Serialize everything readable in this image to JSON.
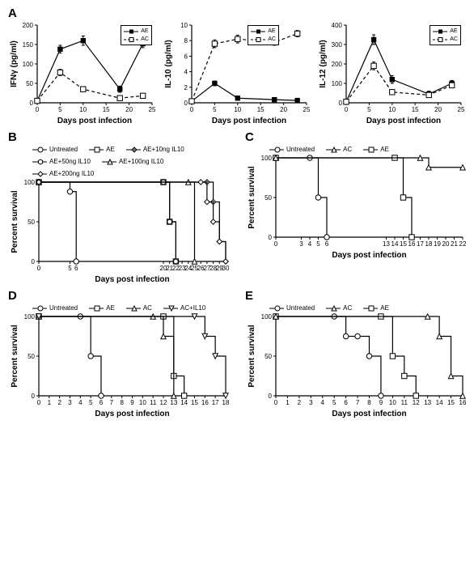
{
  "panelA": {
    "label": "A",
    "charts": [
      {
        "ylabel": "IFNγ (pg/ml)",
        "xlabel": "Days post infection",
        "xlim": [
          0,
          25
        ],
        "xticks": [
          0,
          5,
          10,
          15,
          20,
          25
        ],
        "ylim": [
          0,
          200
        ],
        "yticks": [
          0,
          50,
          100,
          150,
          200
        ],
        "legend": [
          {
            "label": "AE",
            "marker": "square-filled",
            "dash": false
          },
          {
            "label": "AC",
            "marker": "square-open",
            "dash": true
          }
        ],
        "series": {
          "AE": {
            "color": "#000",
            "dash": false,
            "marker": "square-filled",
            "pts": [
              {
                "x": 0,
                "y": 5,
                "e": 3
              },
              {
                "x": 5,
                "y": 138,
                "e": 10
              },
              {
                "x": 10,
                "y": 160,
                "e": 12
              },
              {
                "x": 18,
                "y": 35,
                "e": 8
              },
              {
                "x": 23,
                "y": 152,
                "e": 10
              }
            ]
          },
          "AC": {
            "color": "#000",
            "dash": true,
            "marker": "square-open",
            "pts": [
              {
                "x": 0,
                "y": 5,
                "e": 3
              },
              {
                "x": 5,
                "y": 78,
                "e": 8
              },
              {
                "x": 10,
                "y": 35,
                "e": 6
              },
              {
                "x": 18,
                "y": 12,
                "e": 4
              },
              {
                "x": 23,
                "y": 18,
                "e": 6
              }
            ]
          }
        }
      },
      {
        "ylabel": "IL-10 (pg/ml)",
        "xlabel": "Days post infection",
        "xlim": [
          0,
          25
        ],
        "xticks": [
          0,
          5,
          10,
          15,
          20,
          25
        ],
        "ylim": [
          0,
          10
        ],
        "yticks": [
          0,
          2,
          4,
          6,
          8,
          10
        ],
        "legend": [
          {
            "label": "AE",
            "marker": "square-filled",
            "dash": false
          },
          {
            "label": "AC",
            "marker": "square-open",
            "dash": true
          }
        ],
        "series": {
          "AE": {
            "color": "#000",
            "dash": false,
            "marker": "square-filled",
            "pts": [
              {
                "x": 0,
                "y": 0.2,
                "e": 0.2
              },
              {
                "x": 5,
                "y": 2.5,
                "e": 0.3
              },
              {
                "x": 10,
                "y": 0.6,
                "e": 0.2
              },
              {
                "x": 18,
                "y": 0.4,
                "e": 0.2
              },
              {
                "x": 23,
                "y": 0.3,
                "e": 0.2
              }
            ]
          },
          "AC": {
            "color": "#000",
            "dash": true,
            "marker": "square-open",
            "pts": [
              {
                "x": 0,
                "y": 0.2,
                "e": 0.2
              },
              {
                "x": 5,
                "y": 7.6,
                "e": 0.5
              },
              {
                "x": 10,
                "y": 8.2,
                "e": 0.5
              },
              {
                "x": 18,
                "y": 7.8,
                "e": 0.4
              },
              {
                "x": 23,
                "y": 8.9,
                "e": 0.4
              }
            ]
          }
        }
      },
      {
        "ylabel": "IL-12 (pg/ml)",
        "xlabel": "Days post infection",
        "xlim": [
          0,
          25
        ],
        "xticks": [
          0,
          5,
          10,
          15,
          20,
          25
        ],
        "ylim": [
          0,
          400
        ],
        "yticks": [
          0,
          100,
          200,
          300,
          400
        ],
        "legend": [
          {
            "label": "AE",
            "marker": "square-filled",
            "dash": false
          },
          {
            "label": "AC",
            "marker": "square-open",
            "dash": true
          }
        ],
        "series": {
          "AE": {
            "color": "#000",
            "dash": false,
            "marker": "square-filled",
            "pts": [
              {
                "x": 0,
                "y": 5,
                "e": 5
              },
              {
                "x": 6,
                "y": 325,
                "e": 25
              },
              {
                "x": 10,
                "y": 120,
                "e": 20
              },
              {
                "x": 18,
                "y": 45,
                "e": 15
              },
              {
                "x": 23,
                "y": 100,
                "e": 15
              }
            ]
          },
          "AC": {
            "color": "#000",
            "dash": true,
            "marker": "square-open",
            "pts": [
              {
                "x": 0,
                "y": 5,
                "e": 5
              },
              {
                "x": 6,
                "y": 190,
                "e": 20
              },
              {
                "x": 10,
                "y": 55,
                "e": 12
              },
              {
                "x": 18,
                "y": 40,
                "e": 10
              },
              {
                "x": 23,
                "y": 90,
                "e": 12
              }
            ]
          }
        }
      }
    ]
  },
  "panelB": {
    "label": "B",
    "ylabel": "Percent survival",
    "xlabel": "Days post infection",
    "xlim": [
      0,
      30
    ],
    "xticks": [
      0,
      5,
      6,
      20,
      21,
      22,
      23,
      24,
      25,
      26,
      27,
      28,
      29,
      30
    ],
    "ylim": [
      0,
      100
    ],
    "yticks": [
      0,
      50,
      100
    ],
    "legend": [
      {
        "label": "Untreated",
        "marker": "circle-open"
      },
      {
        "label": "AE",
        "marker": "square-open"
      },
      {
        "label": "AE+10ng IL10",
        "marker": "diamond-plus"
      },
      {
        "label": "AE+50ng IL10",
        "marker": "hexagon-open"
      },
      {
        "label": "AE+100ng IL10",
        "marker": "triangle-open"
      },
      {
        "label": "AE+200ng IL10",
        "marker": "diamond-open"
      }
    ],
    "series": {
      "Untreated": {
        "marker": "circle-open",
        "pts": [
          {
            "x": 0,
            "y": 100
          },
          {
            "x": 5,
            "y": 88
          },
          {
            "x": 6,
            "y": 0
          }
        ]
      },
      "AE": {
        "marker": "square-open",
        "pts": [
          {
            "x": 0,
            "y": 100
          },
          {
            "x": 20,
            "y": 100
          },
          {
            "x": 21,
            "y": 50
          },
          {
            "x": 22,
            "y": 0
          }
        ]
      },
      "AE+10ng": {
        "marker": "diamond-plus",
        "pts": [
          {
            "x": 0,
            "y": 100
          },
          {
            "x": 27,
            "y": 100
          },
          {
            "x": 28,
            "y": 75
          },
          {
            "x": 29,
            "y": 25
          },
          {
            "x": 30,
            "y": 0
          }
        ]
      },
      "AE+50ng": {
        "marker": "hexagon-open",
        "pts": [
          {
            "x": 0,
            "y": 100
          },
          {
            "x": 20,
            "y": 100
          },
          {
            "x": 21,
            "y": 50
          },
          {
            "x": 22,
            "y": 0
          }
        ]
      },
      "AE+100ng": {
        "marker": "triangle-open",
        "pts": [
          {
            "x": 0,
            "y": 100
          },
          {
            "x": 24,
            "y": 100
          },
          {
            "x": 25,
            "y": 0
          }
        ]
      },
      "AE+200ng": {
        "marker": "diamond-open",
        "pts": [
          {
            "x": 0,
            "y": 100
          },
          {
            "x": 26,
            "y": 100
          },
          {
            "x": 27,
            "y": 75
          },
          {
            "x": 28,
            "y": 50
          },
          {
            "x": 29,
            "y": 25
          },
          {
            "x": 30,
            "y": 0
          }
        ]
      }
    }
  },
  "panelC": {
    "label": "C",
    "ylabel": "Percent survival",
    "xlabel": "Days post infection",
    "xlim": [
      0,
      22
    ],
    "xticks": [
      0,
      3,
      4,
      5,
      6,
      13,
      14,
      15,
      16,
      17,
      18,
      19,
      20,
      21,
      22
    ],
    "ylim": [
      0,
      100
    ],
    "yticks": [
      0,
      50,
      100
    ],
    "legend": [
      {
        "label": "Untreated",
        "marker": "circle-open"
      },
      {
        "label": "AC",
        "marker": "triangle-open"
      },
      {
        "label": "AE",
        "marker": "square-open"
      }
    ],
    "series": {
      "Untreated": {
        "marker": "circle-open",
        "pts": [
          {
            "x": 0,
            "y": 100
          },
          {
            "x": 4,
            "y": 100
          },
          {
            "x": 5,
            "y": 50
          },
          {
            "x": 6,
            "y": 0
          }
        ]
      },
      "AE": {
        "marker": "square-open",
        "pts": [
          {
            "x": 0,
            "y": 100
          },
          {
            "x": 14,
            "y": 100
          },
          {
            "x": 15,
            "y": 50
          },
          {
            "x": 16,
            "y": 0
          }
        ]
      },
      "AC": {
        "marker": "triangle-open",
        "pts": [
          {
            "x": 0,
            "y": 100
          },
          {
            "x": 17,
            "y": 100
          },
          {
            "x": 18,
            "y": 88
          },
          {
            "x": 22,
            "y": 88
          }
        ]
      }
    }
  },
  "panelD": {
    "label": "D",
    "ylabel": "Percent survival",
    "xlabel": "Days post infection",
    "xlim": [
      0,
      18
    ],
    "xticks": [
      0,
      1,
      2,
      3,
      4,
      5,
      6,
      7,
      8,
      9,
      10,
      11,
      12,
      13,
      14,
      15,
      16,
      17,
      18
    ],
    "ylim": [
      0,
      100
    ],
    "yticks": [
      0,
      50,
      100
    ],
    "legend": [
      {
        "label": "Untreated",
        "marker": "circle-open"
      },
      {
        "label": "AE",
        "marker": "square-open"
      },
      {
        "label": "AC",
        "marker": "triangle-open"
      },
      {
        "label": "AC+IL10",
        "marker": "triangle-down-open"
      }
    ],
    "series": {
      "Untreated": {
        "marker": "circle-open",
        "pts": [
          {
            "x": 0,
            "y": 100
          },
          {
            "x": 4,
            "y": 100
          },
          {
            "x": 5,
            "y": 50
          },
          {
            "x": 6,
            "y": 0
          }
        ]
      },
      "AE": {
        "marker": "square-open",
        "pts": [
          {
            "x": 0,
            "y": 100
          },
          {
            "x": 12,
            "y": 100
          },
          {
            "x": 13,
            "y": 25
          },
          {
            "x": 14,
            "y": 0
          }
        ]
      },
      "AC": {
        "marker": "triangle-open",
        "pts": [
          {
            "x": 0,
            "y": 100
          },
          {
            "x": 11,
            "y": 100
          },
          {
            "x": 12,
            "y": 75
          },
          {
            "x": 13,
            "y": 0
          }
        ]
      },
      "AC+IL10": {
        "marker": "triangle-down-open",
        "pts": [
          {
            "x": 0,
            "y": 100
          },
          {
            "x": 15,
            "y": 100
          },
          {
            "x": 16,
            "y": 75
          },
          {
            "x": 17,
            "y": 50
          },
          {
            "x": 18,
            "y": 0
          }
        ]
      }
    }
  },
  "panelE": {
    "label": "E",
    "ylabel": "Percent survival",
    "xlabel": "Days post infection",
    "xlim": [
      0,
      16
    ],
    "xticks": [
      0,
      1,
      2,
      3,
      4,
      5,
      6,
      7,
      8,
      9,
      10,
      11,
      12,
      13,
      14,
      15,
      16
    ],
    "ylim": [
      0,
      100
    ],
    "yticks": [
      0,
      50,
      100
    ],
    "legend": [
      {
        "label": "Untreated",
        "marker": "circle-open"
      },
      {
        "label": "AC",
        "marker": "triangle-open"
      },
      {
        "label": "AE",
        "marker": "square-open"
      }
    ],
    "series": {
      "Untreated": {
        "marker": "circle-open",
        "pts": [
          {
            "x": 0,
            "y": 100
          },
          {
            "x": 5,
            "y": 100
          },
          {
            "x": 6,
            "y": 75
          },
          {
            "x": 7,
            "y": 75
          },
          {
            "x": 8,
            "y": 50
          },
          {
            "x": 9,
            "y": 0
          }
        ]
      },
      "AE": {
        "marker": "square-open",
        "pts": [
          {
            "x": 0,
            "y": 100
          },
          {
            "x": 9,
            "y": 100
          },
          {
            "x": 10,
            "y": 50
          },
          {
            "x": 11,
            "y": 25
          },
          {
            "x": 12,
            "y": 0
          }
        ]
      },
      "AC": {
        "marker": "triangle-open",
        "pts": [
          {
            "x": 0,
            "y": 100
          },
          {
            "x": 13,
            "y": 100
          },
          {
            "x": 14,
            "y": 75
          },
          {
            "x": 15,
            "y": 25
          },
          {
            "x": 16,
            "y": 0
          }
        ]
      }
    }
  },
  "style": {
    "bg": "#ffffff",
    "axis": "#000000",
    "line": "#000000",
    "lineWidth": 1.2,
    "markerSize": 3.2,
    "errCap": 3,
    "dash": "4,3"
  }
}
